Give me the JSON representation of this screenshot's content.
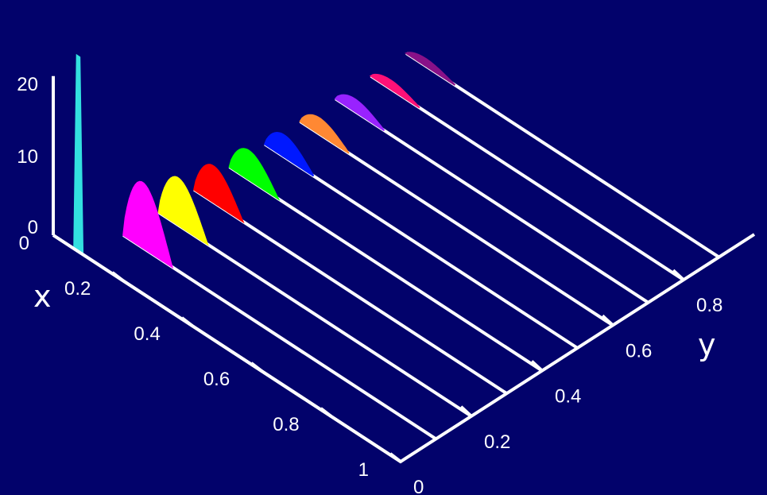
{
  "chart_data": {
    "type": "area",
    "xlabel": "x",
    "ylabel": "y",
    "xlim": [
      0,
      1
    ],
    "ylim": [
      0,
      1
    ],
    "zlim": [
      0,
      20
    ],
    "x_ticks": [
      "0",
      "0.2",
      "0.4",
      "0.6",
      "0.8",
      "1"
    ],
    "y_ticks": [
      "0",
      "0.2",
      "0.4",
      "0.6",
      "0.8"
    ],
    "z_ticks": [
      "0",
      "10",
      "20"
    ],
    "background": "#02026b",
    "series": [
      {
        "y": 0.0,
        "x_start": 0.0,
        "peak": 27.0,
        "color": "#33e0e0"
      },
      {
        "y": 0.1,
        "x_start": 0.1,
        "peak": 9.0,
        "color": "#ff00ff"
      },
      {
        "y": 0.2,
        "x_start": 0.1,
        "peak": 6.5,
        "color": "#ffff00"
      },
      {
        "y": 0.3,
        "x_start": 0.1,
        "peak": 5.0,
        "color": "#ff0000"
      },
      {
        "y": 0.4,
        "x_start": 0.1,
        "peak": 4.0,
        "color": "#00ff00"
      },
      {
        "y": 0.5,
        "x_start": 0.1,
        "peak": 3.0,
        "color": "#0018ff"
      },
      {
        "y": 0.6,
        "x_start": 0.1,
        "peak": 2.2,
        "color": "#ff8833"
      },
      {
        "y": 0.7,
        "x_start": 0.1,
        "peak": 1.7,
        "color": "#9922ff"
      },
      {
        "y": 0.8,
        "x_start": 0.1,
        "peak": 1.2,
        "color": "#ff1177"
      },
      {
        "y": 0.9,
        "x_start": 0.1,
        "peak": 1.0,
        "color": "#881188"
      }
    ]
  }
}
